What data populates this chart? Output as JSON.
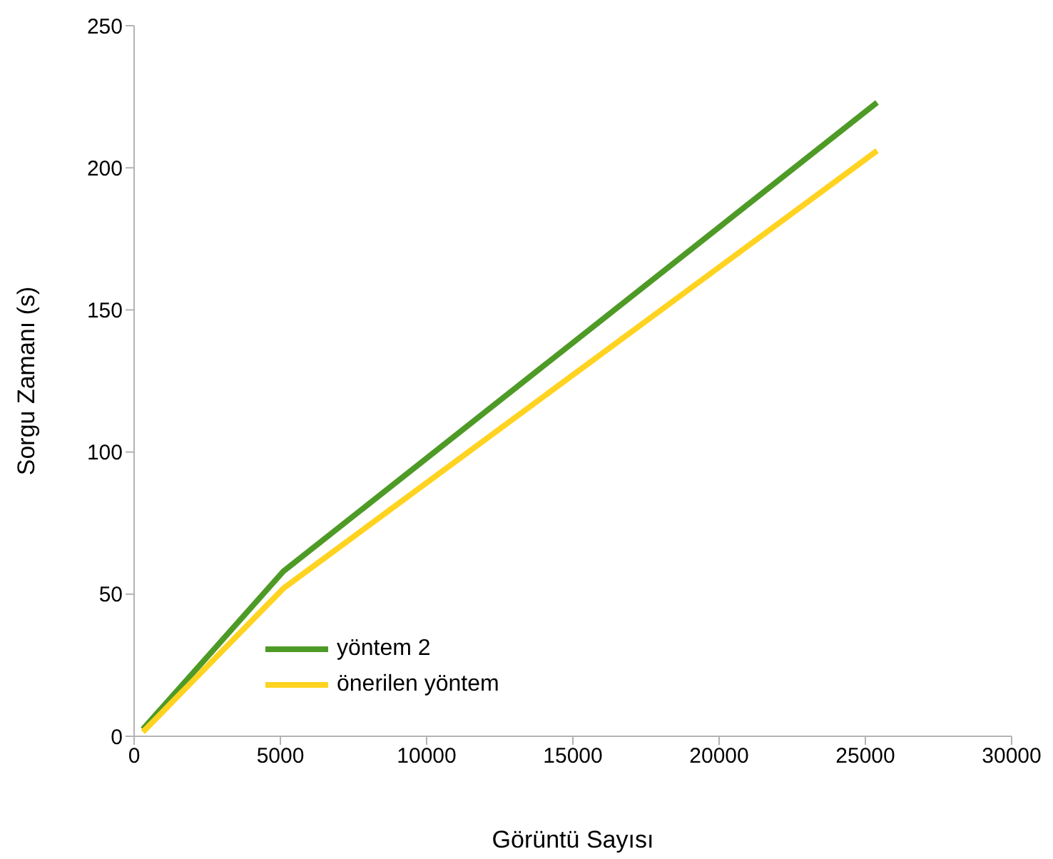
{
  "chart_data": {
    "type": "line",
    "xlabel": "Görüntü Sayısı",
    "ylabel": "Sorgu Zamanı (s)",
    "x": [
      300,
      5100,
      25400
    ],
    "series": [
      {
        "name": "yöntem 2",
        "color": "#4e9a26",
        "values": [
          2.5,
          58,
          223
        ]
      },
      {
        "name": "önerilen yöntem",
        "color": "#ffd320",
        "values": [
          1.5,
          52,
          206
        ]
      }
    ],
    "xlim": [
      0,
      30000
    ],
    "xticks": [
      0,
      5000,
      10000,
      15000,
      20000,
      25000,
      30000
    ],
    "ylim": [
      0,
      250
    ],
    "yticks": [
      0,
      50,
      100,
      150,
      200,
      250
    ],
    "legend": "bottom left",
    "marker": "none",
    "line_style": "solid"
  }
}
